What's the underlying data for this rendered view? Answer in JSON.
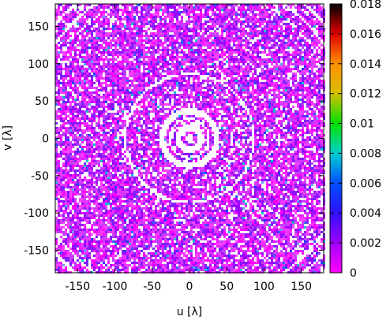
{
  "chart_data": {
    "type": "heatmap",
    "title": "",
    "xlabel": "u [λ]",
    "ylabel": "v [λ]",
    "xlim": [
      -180,
      180
    ],
    "ylim": [
      -180,
      180
    ],
    "x_ticks": [
      -150,
      -100,
      -50,
      0,
      50,
      100,
      150
    ],
    "y_ticks": [
      -150,
      -100,
      -50,
      0,
      50,
      100,
      150
    ],
    "x_tick_labels": [
      "-150",
      "-100",
      "-50",
      "0",
      "50",
      "100",
      "150"
    ],
    "y_tick_labels": [
      "-150",
      "-100",
      "-50",
      "0",
      "50",
      "100",
      "150"
    ],
    "colorbar": {
      "range": [
        0,
        0.018
      ],
      "ticks": [
        0,
        0.002,
        0.004,
        0.006,
        0.008,
        0.01,
        0.012,
        0.014,
        0.016,
        0.018
      ],
      "tick_labels": [
        "0",
        "0.002",
        "0.004",
        "0.006",
        "0.008",
        "0.01",
        "0.012",
        "0.014",
        "0.016",
        "0.018"
      ],
      "colormap": [
        "#000000",
        "#e00000",
        "#ff9000",
        "#d8c000",
        "#00e000",
        "#00d0d0",
        "#0050ff",
        "#3010ff",
        "#a000ff",
        "#ff00ff"
      ]
    },
    "pattern": "concentric rings of uv-coverage samples centered at origin",
    "ring_radii": [
      8,
      22,
      30,
      45,
      52,
      62,
      72,
      80,
      92,
      100,
      110,
      120,
      128,
      138,
      150,
      160,
      172,
      185,
      198,
      212,
      228,
      245
    ],
    "grid": false,
    "legend": "colorbar-right",
    "typical_value": 0.001,
    "max_value": 0.018,
    "background": "#ffffff"
  }
}
